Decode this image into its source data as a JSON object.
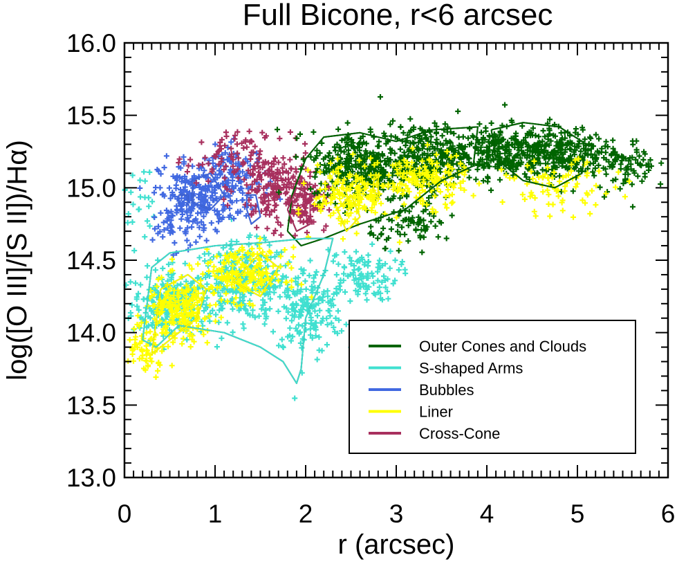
{
  "chart_data": {
    "type": "scatter",
    "title": "Full Bicone, r<6 arcsec",
    "xlabel": "r (arcsec)",
    "ylabel": "log([O III]/[S II])/Hα)",
    "xlim": [
      0,
      6
    ],
    "ylim": [
      13.0,
      16.0
    ],
    "x_ticks": [
      0,
      1,
      2,
      3,
      4,
      5,
      6
    ],
    "x_tick_labels": [
      "0",
      "1",
      "2",
      "3",
      "4",
      "5",
      "6"
    ],
    "y_ticks": [
      13.0,
      13.5,
      14.0,
      14.5,
      15.0,
      15.5,
      16.0
    ],
    "y_tick_labels": [
      "13.0",
      "13.5",
      "14.0",
      "14.5",
      "15.0",
      "15.5",
      "16.0"
    ],
    "marker": "+",
    "legend_position": "bottom-right",
    "series": [
      {
        "name": "Outer Cones and Clouds",
        "color": "#006400",
        "clusters": [
          [
            2.6,
            15.15,
            0.45,
            0.2,
            320
          ],
          [
            3.3,
            15.2,
            0.4,
            0.2,
            280
          ],
          [
            4.1,
            15.25,
            0.45,
            0.15,
            260
          ],
          [
            4.8,
            15.25,
            0.4,
            0.15,
            240
          ],
          [
            5.5,
            15.15,
            0.3,
            0.15,
            90
          ],
          [
            3.2,
            14.75,
            0.4,
            0.12,
            80
          ]
        ],
        "contours": [
          [
            [
              1.8,
              14.7
            ],
            [
              1.85,
              14.95
            ],
            [
              2.0,
              15.2
            ],
            [
              2.2,
              15.35
            ],
            [
              2.6,
              15.38
            ],
            [
              3.0,
              15.32
            ],
            [
              3.4,
              15.4
            ],
            [
              3.9,
              15.42
            ],
            [
              3.85,
              15.15
            ],
            [
              3.5,
              15.05
            ],
            [
              3.1,
              14.85
            ],
            [
              2.6,
              14.75
            ],
            [
              2.2,
              14.65
            ],
            [
              1.95,
              14.6
            ],
            [
              1.8,
              14.7
            ]
          ],
          [
            [
              4.05,
              15.4
            ],
            [
              4.4,
              15.45
            ],
            [
              4.8,
              15.42
            ],
            [
              5.1,
              15.3
            ],
            [
              5.05,
              15.1
            ],
            [
              4.75,
              15.0
            ],
            [
              4.4,
              15.05
            ],
            [
              4.1,
              15.2
            ],
            [
              4.05,
              15.4
            ]
          ]
        ]
      },
      {
        "name": "S-shaped Arms",
        "color": "#40E0D0",
        "clusters": [
          [
            0.5,
            14.2,
            0.35,
            0.2,
            240
          ],
          [
            1.3,
            14.35,
            0.45,
            0.22,
            280
          ],
          [
            2.0,
            14.15,
            0.35,
            0.25,
            180
          ],
          [
            2.6,
            14.4,
            0.35,
            0.15,
            110
          ],
          [
            0.15,
            14.9,
            0.15,
            0.25,
            25
          ]
        ],
        "contours": [
          [
            [
              0.2,
              13.95
            ],
            [
              0.3,
              14.45
            ],
            [
              0.5,
              14.55
            ],
            [
              1.0,
              14.6
            ],
            [
              1.5,
              14.62
            ],
            [
              2.0,
              14.65
            ],
            [
              2.3,
              14.65
            ],
            [
              2.2,
              14.4
            ],
            [
              2.0,
              14.1
            ],
            [
              1.95,
              13.75
            ],
            [
              1.9,
              13.65
            ],
            [
              1.75,
              13.8
            ],
            [
              1.5,
              13.9
            ],
            [
              1.1,
              14.0
            ],
            [
              0.6,
              14.05
            ],
            [
              0.35,
              13.9
            ],
            [
              0.2,
              13.95
            ]
          ]
        ]
      },
      {
        "name": "Bubbles",
        "color": "#4169E1",
        "clusters": [
          [
            0.8,
            14.95,
            0.35,
            0.2,
            200
          ],
          [
            1.25,
            15.05,
            0.3,
            0.2,
            120
          ],
          [
            0.55,
            14.75,
            0.2,
            0.15,
            50
          ]
        ],
        "contours": [
          [
            [
              0.75,
              15.05
            ],
            [
              0.95,
              15.1
            ],
            [
              1.1,
              14.95
            ],
            [
              0.95,
              14.85
            ],
            [
              0.75,
              14.9
            ],
            [
              0.75,
              15.05
            ]
          ],
          [
            [
              1.35,
              14.95
            ],
            [
              1.45,
              14.95
            ],
            [
              1.5,
              14.8
            ],
            [
              1.4,
              14.75
            ],
            [
              1.35,
              14.85
            ],
            [
              1.35,
              14.95
            ]
          ],
          [
            [
              0.6,
              14.95
            ],
            [
              0.7,
              14.95
            ],
            [
              0.7,
              14.88
            ],
            [
              0.6,
              14.88
            ],
            [
              0.6,
              14.95
            ]
          ]
        ]
      },
      {
        "name": "Liner",
        "color": "#FFFF00",
        "clusters": [
          [
            0.6,
            14.15,
            0.3,
            0.18,
            200
          ],
          [
            1.3,
            14.4,
            0.4,
            0.15,
            190
          ],
          [
            2.5,
            14.95,
            0.35,
            0.18,
            170
          ],
          [
            3.3,
            15.05,
            0.4,
            0.15,
            160
          ],
          [
            4.8,
            15.0,
            0.5,
            0.15,
            80
          ],
          [
            0.25,
            13.9,
            0.2,
            0.15,
            60
          ]
        ],
        "contours": [
          [
            [
              0.3,
              13.85
            ],
            [
              0.4,
              14.3
            ],
            [
              0.7,
              14.4
            ],
            [
              0.9,
              14.3
            ],
            [
              0.8,
              14.1
            ],
            [
              0.5,
              13.95
            ],
            [
              0.3,
              13.85
            ]
          ],
          [
            [
              1.2,
              14.35
            ],
            [
              1.5,
              14.55
            ],
            [
              1.7,
              14.45
            ],
            [
              1.5,
              14.25
            ],
            [
              1.2,
              14.35
            ]
          ],
          [
            [
              2.35,
              14.85
            ],
            [
              2.5,
              14.95
            ],
            [
              2.6,
              14.8
            ],
            [
              2.45,
              14.7
            ],
            [
              2.35,
              14.85
            ]
          ],
          [
            [
              2.75,
              15.05
            ],
            [
              2.8,
              15.08
            ],
            [
              2.8,
              14.95
            ],
            [
              2.75,
              14.98
            ],
            [
              2.75,
              15.05
            ]
          ]
        ]
      },
      {
        "name": "Cross-Cone",
        "color": "#A8305E",
        "clusters": [
          [
            1.65,
            15.0,
            0.35,
            0.22,
            200
          ],
          [
            2.0,
            14.9,
            0.2,
            0.15,
            90
          ],
          [
            1.1,
            15.2,
            0.35,
            0.15,
            70
          ]
        ],
        "contours": [
          [
            [
              1.8,
              14.85
            ],
            [
              1.9,
              15.0
            ],
            [
              2.05,
              14.95
            ],
            [
              2.05,
              14.75
            ],
            [
              1.9,
              14.7
            ],
            [
              1.8,
              14.85
            ]
          ]
        ]
      }
    ]
  }
}
